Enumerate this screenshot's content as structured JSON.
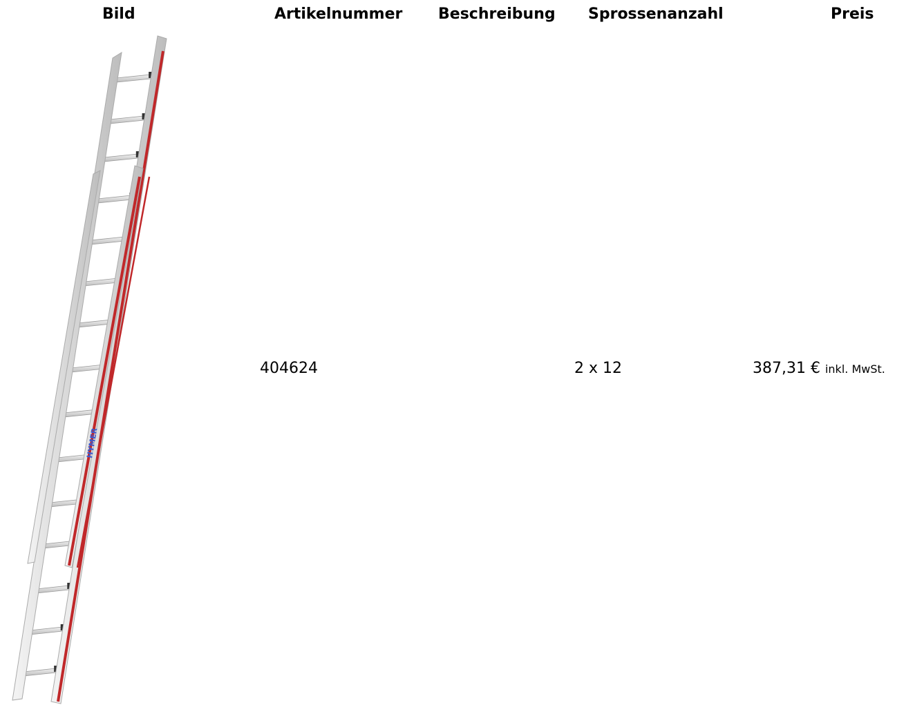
{
  "table": {
    "headers": {
      "image": "Bild",
      "article_number": "Artikelnummer",
      "description": "Beschreibung",
      "rung_count": "Sprossenanzahl",
      "price": "Preis"
    },
    "row": {
      "image_alt": "ladder-image",
      "article_number": "404624",
      "description": "",
      "rung_count": "2 x 12",
      "price": "387,31 €",
      "price_note": "inkl. MwSt."
    }
  },
  "product_image": {
    "subject": "two-part aluminium extension ladder",
    "brand_mark": "HYMER",
    "colors": {
      "rail": "#d8d8d8",
      "stripe": "#c0282a",
      "rung": "#cfcfcf",
      "logo": "#3a5bd0"
    }
  }
}
